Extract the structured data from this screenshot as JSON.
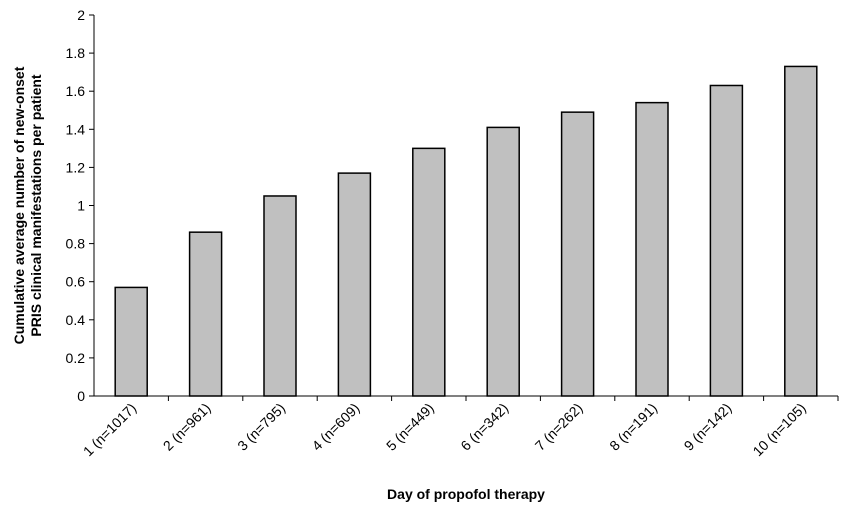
{
  "chart_data": {
    "type": "bar",
    "xlabel": "Day of propofol therapy",
    "ylabel_lines": [
      "Cumulative average number of new-onset",
      "PRIS clinical manifestations per patient"
    ],
    "categories": [
      "1 (n=1017)",
      "2 (n=961)",
      "3 (n=795)",
      "4 (n=609)",
      "5 (n=449)",
      "6 (n=342)",
      "7 (n=262)",
      "8 (n=191)",
      "9 (n=142)",
      "10 (n=105)"
    ],
    "values": [
      0.57,
      0.86,
      1.05,
      1.17,
      1.3,
      1.41,
      1.49,
      1.54,
      1.63,
      1.73
    ],
    "ylim": [
      0,
      2
    ],
    "yticks": [
      "0",
      "0.2",
      "0.4",
      "0.6",
      "0.8",
      "1",
      "1.2",
      "1.4",
      "1.6",
      "1.8",
      "2"
    ],
    "grid": false,
    "bar_color": "#c0c0c0",
    "edge_color": "#000000"
  }
}
